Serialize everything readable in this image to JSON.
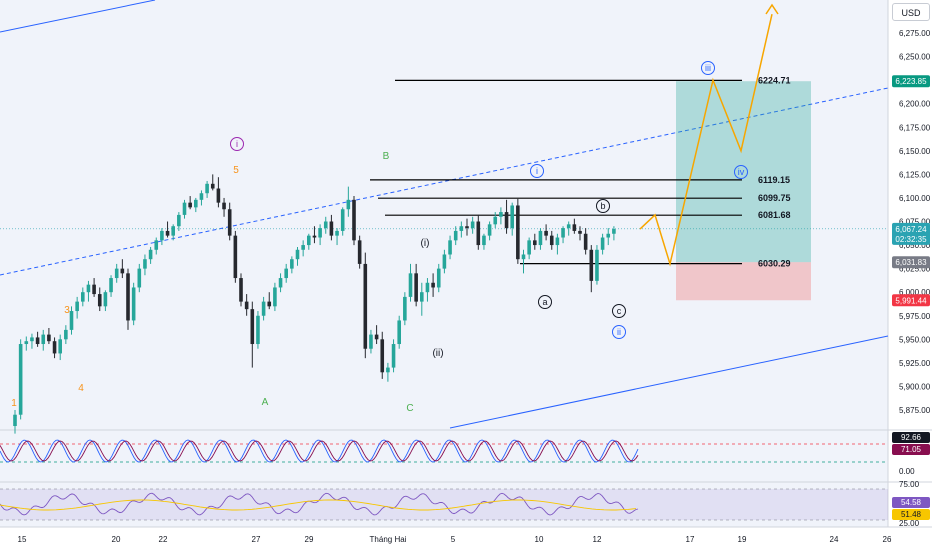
{
  "currency": "USD",
  "chart_data": {
    "type": "candlestick",
    "price_axis": {
      "ticks": [
        6275,
        6250,
        6225,
        6200,
        6175,
        6150,
        6125,
        6100,
        6075,
        6050,
        6025,
        6000,
        5975,
        5950,
        5925,
        5900,
        5875
      ],
      "tick_labels": [
        "6,275.00",
        "6,250.00",
        "6,225.00",
        "6,200.00",
        "6,175.00",
        "6,150.00",
        "6,125.00",
        "6,100.00",
        "6,075.00",
        "6,050.00",
        "6,025.00",
        "6,000.00",
        "5,975.00",
        "5,950.00",
        "5,925.00",
        "5,900.00",
        "5,875.00"
      ]
    },
    "time_axis": {
      "labels": [
        "15",
        "20",
        "22",
        "27",
        "29",
        "Tháng Hai",
        "5",
        "10",
        "12",
        "17",
        "19",
        "24",
        "26"
      ]
    },
    "candles": [
      [
        5858,
        5875,
        5850,
        5870
      ],
      [
        5870,
        5950,
        5865,
        5945
      ],
      [
        5945,
        5953,
        5938,
        5948
      ],
      [
        5948,
        5956,
        5940,
        5952
      ],
      [
        5952,
        5958,
        5942,
        5945
      ],
      [
        5945,
        5960,
        5938,
        5955
      ],
      [
        5955,
        5962,
        5945,
        5948
      ],
      [
        5948,
        5952,
        5930,
        5935
      ],
      [
        5935,
        5955,
        5928,
        5950
      ],
      [
        5950,
        5965,
        5945,
        5960
      ],
      [
        5960,
        5985,
        5955,
        5980
      ],
      [
        5980,
        5995,
        5972,
        5990
      ],
      [
        5990,
        6005,
        5985,
        6000
      ],
      [
        6000,
        6012,
        5990,
        6008
      ],
      [
        6008,
        6015,
        5995,
        5998
      ],
      [
        5998,
        6005,
        5980,
        5985
      ],
      [
        5985,
        6002,
        5980,
        6000
      ],
      [
        6000,
        6018,
        5995,
        6015
      ],
      [
        6015,
        6030,
        6010,
        6025
      ],
      [
        6025,
        6035,
        6015,
        6020
      ],
      [
        6020,
        6025,
        5960,
        5970
      ],
      [
        5970,
        6010,
        5965,
        6005
      ],
      [
        6005,
        6030,
        6000,
        6025
      ],
      [
        6025,
        6040,
        6018,
        6035
      ],
      [
        6035,
        6048,
        6030,
        6045
      ],
      [
        6045,
        6058,
        6040,
        6055
      ],
      [
        6055,
        6068,
        6050,
        6065
      ],
      [
        6065,
        6075,
        6058,
        6060
      ],
      [
        6060,
        6072,
        6055,
        6070
      ],
      [
        6070,
        6085,
        6065,
        6082
      ],
      [
        6082,
        6098,
        6078,
        6095
      ],
      [
        6095,
        6102,
        6088,
        6090
      ],
      [
        6090,
        6100,
        6085,
        6098
      ],
      [
        6098,
        6108,
        6092,
        6105
      ],
      [
        6105,
        6118,
        6100,
        6115
      ],
      [
        6115,
        6125,
        6108,
        6110
      ],
      [
        6110,
        6122,
        6090,
        6095
      ],
      [
        6095,
        6100,
        6080,
        6088
      ],
      [
        6088,
        6095,
        6055,
        6060
      ],
      [
        6060,
        6065,
        6010,
        6015
      ],
      [
        6015,
        6020,
        5985,
        5990
      ],
      [
        5990,
        5998,
        5975,
        5982
      ],
      [
        5982,
        5990,
        5920,
        5945
      ],
      [
        5945,
        5980,
        5940,
        5975
      ],
      [
        5975,
        5995,
        5970,
        5990
      ],
      [
        5990,
        6000,
        5982,
        5985
      ],
      [
        5985,
        6010,
        5980,
        6005
      ],
      [
        6005,
        6020,
        6000,
        6015
      ],
      [
        6015,
        6030,
        6010,
        6025
      ],
      [
        6025,
        6038,
        6020,
        6035
      ],
      [
        6035,
        6048,
        6028,
        6045
      ],
      [
        6045,
        6055,
        6038,
        6050
      ],
      [
        6050,
        6062,
        6045,
        6060
      ],
      [
        6060,
        6070,
        6052,
        6058
      ],
      [
        6058,
        6072,
        6050,
        6068
      ],
      [
        6068,
        6080,
        6062,
        6075
      ],
      [
        6075,
        6082,
        6055,
        6060
      ],
      [
        6060,
        6068,
        6050,
        6065
      ],
      [
        6065,
        6090,
        6060,
        6088
      ],
      [
        6088,
        6112,
        6080,
        6098
      ],
      [
        6098,
        6102,
        6050,
        6055
      ],
      [
        6055,
        6060,
        6025,
        6030
      ],
      [
        6030,
        6042,
        5930,
        5940
      ],
      [
        5940,
        5960,
        5935,
        5955
      ],
      [
        5955,
        5965,
        5945,
        5950
      ],
      [
        5950,
        5958,
        5908,
        5915
      ],
      [
        5915,
        5925,
        5905,
        5920
      ],
      [
        5920,
        5950,
        5915,
        5945
      ],
      [
        5945,
        5975,
        5940,
        5970
      ],
      [
        5970,
        6000,
        5965,
        5995
      ],
      [
        5995,
        6030,
        5990,
        6020
      ],
      [
        6020,
        6030,
        5985,
        5990
      ],
      [
        5990,
        6010,
        5975,
        6000
      ],
      [
        6000,
        6015,
        5990,
        6010
      ],
      [
        6010,
        6020,
        5995,
        6005
      ],
      [
        6005,
        6030,
        6000,
        6025
      ],
      [
        6025,
        6045,
        6020,
        6040
      ],
      [
        6040,
        6060,
        6035,
        6055
      ],
      [
        6055,
        6070,
        6050,
        6065
      ],
      [
        6065,
        6075,
        6058,
        6070
      ],
      [
        6070,
        6078,
        6060,
        6068
      ],
      [
        6068,
        6080,
        6062,
        6075
      ],
      [
        6075,
        6082,
        6045,
        6050
      ],
      [
        6050,
        6062,
        6045,
        6060
      ],
      [
        6060,
        6075,
        6055,
        6072
      ],
      [
        6072,
        6085,
        6068,
        6080
      ],
      [
        6080,
        6090,
        6072,
        6085
      ],
      [
        6085,
        6098,
        6062,
        6068
      ],
      [
        6068,
        6095,
        6060,
        6092
      ],
      [
        6092,
        6099,
        6030,
        6035
      ],
      [
        6035,
        6045,
        6020,
        6040
      ],
      [
        6040,
        6058,
        6035,
        6055
      ],
      [
        6055,
        6062,
        6045,
        6050
      ],
      [
        6050,
        6068,
        6045,
        6065
      ],
      [
        6065,
        6072,
        6055,
        6060
      ],
      [
        6060,
        6065,
        6045,
        6050
      ],
      [
        6050,
        6062,
        6040,
        6058
      ],
      [
        6058,
        6070,
        6052,
        6068
      ],
      [
        6068,
        6075,
        6060,
        6072
      ],
      [
        6072,
        6078,
        6062,
        6065
      ],
      [
        6065,
        6070,
        6055,
        6062
      ],
      [
        6062,
        6068,
        6040,
        6045
      ],
      [
        6045,
        6050,
        6000,
        6012
      ],
      [
        6012,
        6050,
        6008,
        6045
      ],
      [
        6045,
        6062,
        6040,
        6058
      ],
      [
        6058,
        6068,
        6050,
        6062
      ],
      [
        6062,
        6070,
        6055,
        6067
      ]
    ],
    "levels": [
      {
        "label": "6224.71",
        "value": 6224.71
      },
      {
        "label": "6119.15",
        "value": 6119.15
      },
      {
        "label": "6099.75",
        "value": 6099.75
      },
      {
        "label": "6081.68",
        "value": 6081.68
      },
      {
        "label": "6030.29",
        "value": 6030.29
      }
    ],
    "price_tags": [
      {
        "label": "6,223.85",
        "value": 6223.85,
        "color": "#089981"
      },
      {
        "label": "6,067.24",
        "sub": "02:32:35",
        "value": 6067.24,
        "color": "#2aa3b2"
      },
      {
        "label": "6,031.83",
        "value": 6031.83,
        "color": "#787b86"
      },
      {
        "label": "5,991.44",
        "value": 5991.44,
        "color": "#f23645"
      }
    ],
    "position": {
      "entry": 6031.83,
      "target": 6223.85,
      "stop": 5991.44
    },
    "projection": [
      [
        6067,
        "now"
      ],
      [
        6082,
        "+1"
      ],
      [
        6030,
        "+2"
      ],
      [
        6225,
        "+3"
      ],
      [
        6150,
        "+4"
      ],
      [
        6295,
        "+5"
      ]
    ],
    "wave_labels": [
      {
        "text": "1",
        "color": "#f7931a"
      },
      {
        "text": "3",
        "color": "#f7931a"
      },
      {
        "text": "4",
        "color": "#f7931a"
      },
      {
        "text": "5",
        "color": "#f7931a"
      },
      {
        "text": "i",
        "color": "#9c27b0",
        "circled": true
      },
      {
        "text": "A",
        "color": "#4caf50"
      },
      {
        "text": "B",
        "color": "#4caf50"
      },
      {
        "text": "C",
        "color": "#4caf50"
      },
      {
        "text": "(i)",
        "color": "#131722"
      },
      {
        "text": "(ii)",
        "color": "#131722"
      },
      {
        "text": "a",
        "color": "#131722",
        "circled": true
      },
      {
        "text": "b",
        "color": "#131722",
        "circled": true
      },
      {
        "text": "c",
        "color": "#131722",
        "circled": true
      },
      {
        "text": "i",
        "color": "#2962ff",
        "circled": true
      },
      {
        "text": "ii",
        "color": "#2962ff",
        "circled": true
      },
      {
        "text": "iii",
        "color": "#2962ff",
        "circled": true
      },
      {
        "text": "iv",
        "color": "#2962ff",
        "circled": true
      }
    ],
    "stoch": {
      "values": [
        "92.66",
        "71.05"
      ],
      "ticks": [
        "0.00"
      ]
    },
    "rsi": {
      "values": [
        "54.58",
        "51.48"
      ],
      "ticks": [
        "75.00",
        "25.00"
      ]
    }
  }
}
